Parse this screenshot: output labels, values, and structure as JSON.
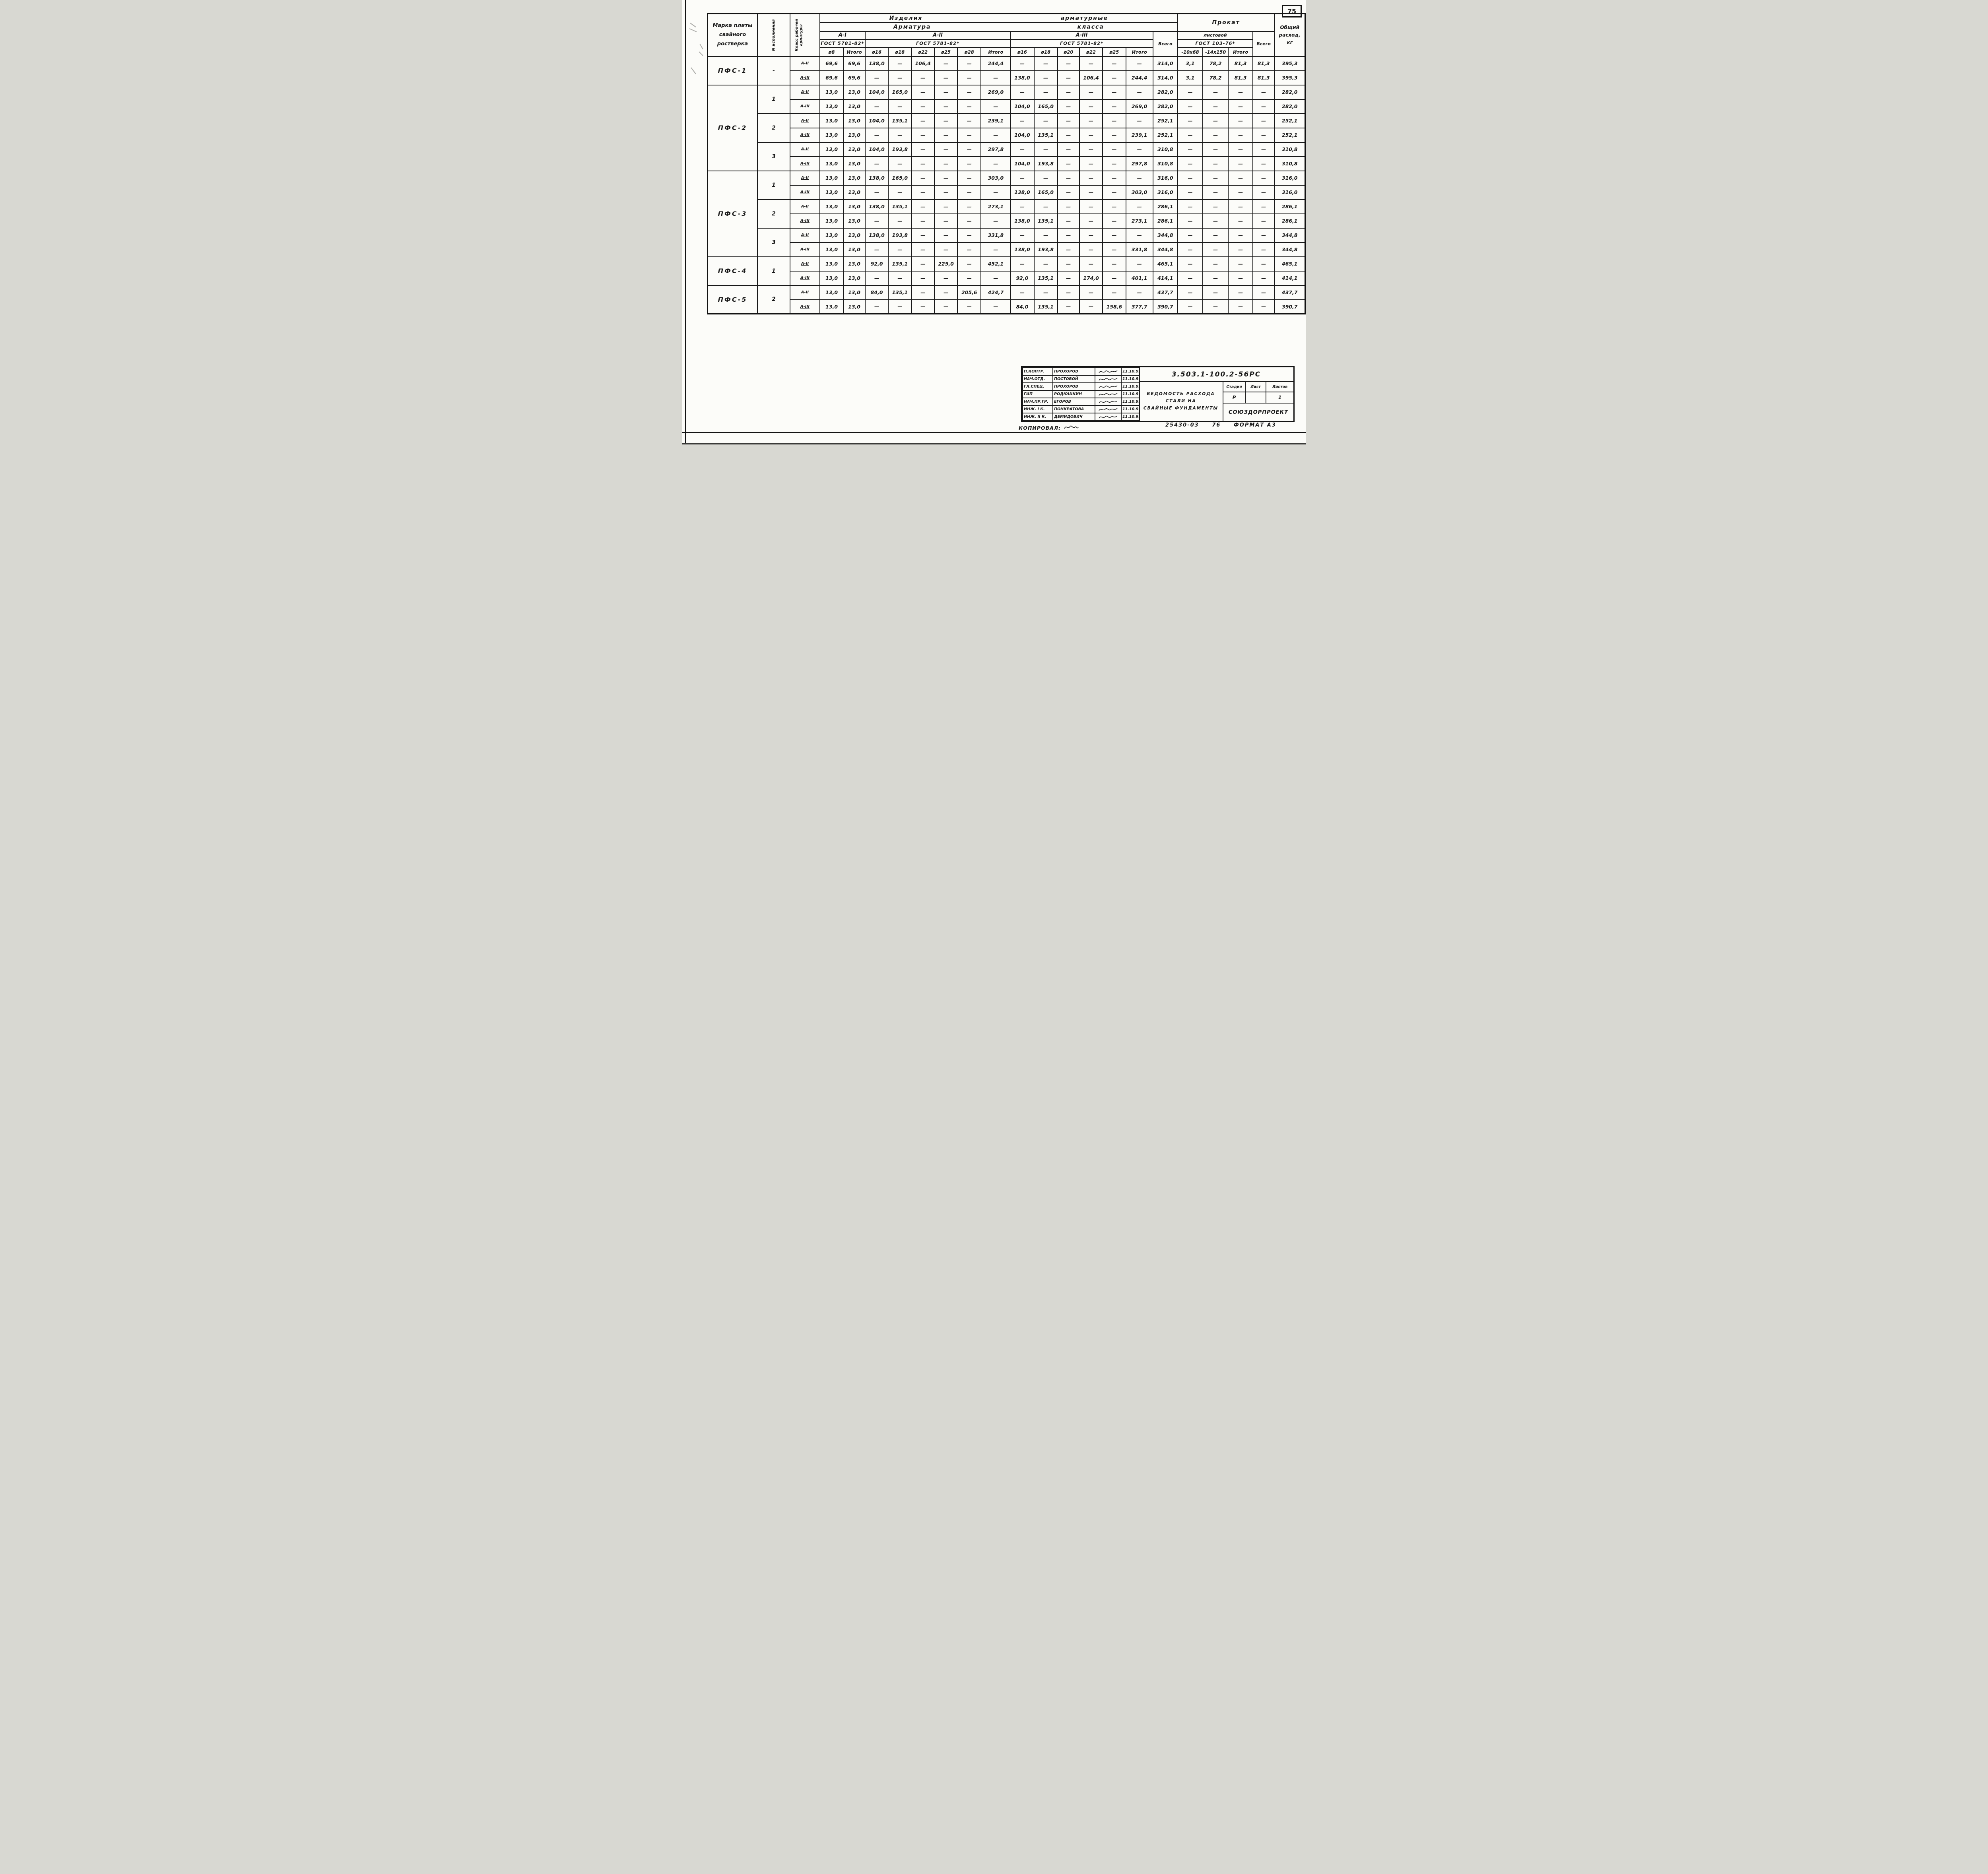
{
  "page": {
    "sheet_number": "75",
    "copied_label": "КОПИРОВАЛ:",
    "footer_order": "25430-03",
    "footer_code": "76",
    "footer_format": "ФОРМАТ А3"
  },
  "table": {
    "header": {
      "title_left": "Изделия",
      "title_right": "арматурные",
      "subtitle_left": "Арматура",
      "subtitle_right": "класса",
      "mark_lines": [
        "Марка плиты",
        "свайного",
        "ростверка"
      ],
      "variant_label": "N исполнения",
      "class_label": "Класс рабочей арматуры",
      "a1": "А-I",
      "a2": "А-II",
      "a3": "А-III",
      "gost_a1": "ГОСТ 5781-82*",
      "gost_a2": "ГОСТ 5781-82*",
      "gost_a3": "ГОСТ 5781-82*",
      "d_a1": [
        "ø8",
        "Итого"
      ],
      "d_a2": [
        "ø16",
        "ø18",
        "ø22",
        "ø25",
        "ø28",
        "Итого"
      ],
      "d_a3": [
        "ø16",
        "ø18",
        "ø20",
        "ø22",
        "ø25",
        "Итого"
      ],
      "vsego_arm": "Всего",
      "prokat": "Прокат",
      "listovoy": "листовой",
      "gost_prokat": "ГОСТ 103-76*",
      "d_prokat": [
        "-10х68",
        "-14х150",
        "Итого"
      ],
      "vsego_prokat": "Всего",
      "total_lines": [
        "Общий",
        "расход,",
        "кг"
      ]
    },
    "rows": [
      {
        "mark": "ПФС-1",
        "mark_span": 2,
        "variant": "-",
        "variant_span": 2,
        "cls": "А-II",
        "values": [
          "69,6",
          "69,6",
          "138,0",
          "—",
          "106,4",
          "—",
          "—",
          "244,4",
          "—",
          "—",
          "—",
          "—",
          "—",
          "—",
          "314,0",
          "3,1",
          "78,2",
          "81,3",
          "81,3",
          "395,3"
        ]
      },
      {
        "cls": "А-III",
        "values": [
          "69,6",
          "69,6",
          "—",
          "—",
          "—",
          "—",
          "—",
          "—",
          "138,0",
          "—",
          "—",
          "106,4",
          "—",
          "244,4",
          "314,0",
          "3,1",
          "78,2",
          "81,3",
          "81,3",
          "395,3"
        ]
      },
      {
        "mark": "ПФС-2",
        "mark_span": 6,
        "variant": "1",
        "variant_span": 2,
        "cls": "А-II",
        "values": [
          "13,0",
          "13,0",
          "104,0",
          "165,0",
          "—",
          "—",
          "—",
          "269,0",
          "—",
          "—",
          "—",
          "—",
          "—",
          "—",
          "282,0",
          "—",
          "—",
          "—",
          "—",
          "282,0"
        ]
      },
      {
        "cls": "А-III",
        "values": [
          "13,0",
          "13,0",
          "—",
          "—",
          "—",
          "—",
          "—",
          "—",
          "104,0",
          "165,0",
          "—",
          "—",
          "—",
          "269,0",
          "282,0",
          "—",
          "—",
          "—",
          "—",
          "282,0"
        ]
      },
      {
        "variant": "2",
        "variant_span": 2,
        "cls": "А-II",
        "values": [
          "13,0",
          "13,0",
          "104,0",
          "135,1",
          "—",
          "—",
          "—",
          "239,1",
          "—",
          "—",
          "—",
          "—",
          "—",
          "—",
          "252,1",
          "—",
          "—",
          "—",
          "—",
          "252,1"
        ]
      },
      {
        "cls": "А-III",
        "values": [
          "13,0",
          "13,0",
          "—",
          "—",
          "—",
          "—",
          "—",
          "—",
          "104,0",
          "135,1",
          "—",
          "—",
          "—",
          "239,1",
          "252,1",
          "—",
          "—",
          "—",
          "—",
          "252,1"
        ]
      },
      {
        "variant": "3",
        "variant_span": 2,
        "cls": "А-II",
        "values": [
          "13,0",
          "13,0",
          "104,0",
          "193,8",
          "—",
          "—",
          "—",
          "297,8",
          "—",
          "—",
          "—",
          "—",
          "—",
          "—",
          "310,8",
          "—",
          "—",
          "—",
          "—",
          "310,8"
        ]
      },
      {
        "cls": "А-III",
        "values": [
          "13,0",
          "13,0",
          "—",
          "—",
          "—",
          "—",
          "—",
          "—",
          "104,0",
          "193,8",
          "—",
          "—",
          "—",
          "297,8",
          "310,8",
          "—",
          "—",
          "—",
          "—",
          "310,8"
        ]
      },
      {
        "mark": "ПФС-3",
        "mark_span": 6,
        "variant": "1",
        "variant_span": 2,
        "cls": "А-II",
        "values": [
          "13,0",
          "13,0",
          "138,0",
          "165,0",
          "—",
          "—",
          "—",
          "303,0",
          "—",
          "—",
          "—",
          "—",
          "—",
          "—",
          "316,0",
          "—",
          "—",
          "—",
          "—",
          "316,0"
        ]
      },
      {
        "cls": "А-III",
        "values": [
          "13,0",
          "13,0",
          "—",
          "—",
          "—",
          "—",
          "—",
          "—",
          "138,0",
          "165,0",
          "—",
          "—",
          "—",
          "303,0",
          "316,0",
          "—",
          "—",
          "—",
          "—",
          "316,0"
        ]
      },
      {
        "variant": "2",
        "variant_span": 2,
        "cls": "А-II",
        "values": [
          "13,0",
          "13,0",
          "138,0",
          "135,1",
          "—",
          "—",
          "—",
          "273,1",
          "—",
          "—",
          "—",
          "—",
          "—",
          "—",
          "286,1",
          "—",
          "—",
          "—",
          "—",
          "286,1"
        ]
      },
      {
        "cls": "А-III",
        "values": [
          "13,0",
          "13,0",
          "—",
          "—",
          "—",
          "—",
          "—",
          "—",
          "138,0",
          "135,1",
          "—",
          "—",
          "—",
          "273,1",
          "286,1",
          "—",
          "—",
          "—",
          "—",
          "286,1"
        ]
      },
      {
        "variant": "3",
        "variant_span": 2,
        "cls": "А-II",
        "values": [
          "13,0",
          "13,0",
          "138,0",
          "193,8",
          "—",
          "—",
          "—",
          "331,8",
          "—",
          "—",
          "—",
          "—",
          "—",
          "—",
          "344,8",
          "—",
          "—",
          "—",
          "—",
          "344,8"
        ]
      },
      {
        "cls": "А-III",
        "values": [
          "13,0",
          "13,0",
          "—",
          "—",
          "—",
          "—",
          "—",
          "—",
          "138,0",
          "193,8",
          "—",
          "—",
          "—",
          "331,8",
          "344,8",
          "—",
          "—",
          "—",
          "—",
          "344,8"
        ]
      },
      {
        "mark": "ПФС-4",
        "mark_span": 2,
        "variant": "1",
        "variant_span": 2,
        "cls": "А-II",
        "values": [
          "13,0",
          "13,0",
          "92,0",
          "135,1",
          "—",
          "225,0",
          "—",
          "452,1",
          "—",
          "—",
          "—",
          "—",
          "—",
          "—",
          "465,1",
          "—",
          "—",
          "—",
          "—",
          "465,1"
        ]
      },
      {
        "cls": "А-III",
        "values": [
          "13,0",
          "13,0",
          "—",
          "—",
          "—",
          "—",
          "—",
          "—",
          "92,0",
          "135,1",
          "—",
          "174,0",
          "—",
          "401,1",
          "414,1",
          "—",
          "—",
          "—",
          "—",
          "414,1"
        ]
      },
      {
        "mark": "ПФС-5",
        "mark_span": 2,
        "variant": "2",
        "variant_span": 2,
        "cls": "А-II",
        "values": [
          "13,0",
          "13,0",
          "84,0",
          "135,1",
          "—",
          "—",
          "205,6",
          "424,7",
          "—",
          "—",
          "—",
          "—",
          "—",
          "—",
          "437,7",
          "—",
          "—",
          "—",
          "—",
          "437,7"
        ]
      },
      {
        "cls": "А-III",
        "values": [
          "13,0",
          "13,0",
          "—",
          "—",
          "—",
          "—",
          "—",
          "—",
          "84,0",
          "135,1",
          "—",
          "—",
          "158,6",
          "377,7",
          "390,7",
          "—",
          "—",
          "—",
          "—",
          "390,7"
        ]
      }
    ]
  },
  "stamp": {
    "doc_number": "3.503.1-100.2-56РС",
    "title_lines": [
      "ВЕДОМОСТЬ  РАСХОДА",
      "СТАЛИ  НА",
      "СВАЙНЫЕ  ФУНДАМЕНТЫ"
    ],
    "stage_label": "Стадия",
    "sheet_label": "Лист",
    "sheets_label": "Листов",
    "stage_value": "Р",
    "sheet_value": "",
    "sheets_value": "1",
    "org": "СОЮЗДОРПРОЕКТ",
    "people": [
      {
        "role": "Н.КОНТР.",
        "name": "ПРОХОРОВ",
        "date": "11.10.91"
      },
      {
        "role": "НАЧ.ОТД.",
        "name": "ПОСТОВОЙ",
        "date": "11.10.91"
      },
      {
        "role": "ГЛ.СПЕЦ.",
        "name": "ПРОХОРОВ",
        "date": "11.10.91"
      },
      {
        "role": "ГИП",
        "name": "РОДЮШКИН",
        "date": "11.10.91"
      },
      {
        "role": "НАЧ.ПР.ГР.",
        "name": "ЕГОРОВ",
        "date": "11.10.91"
      },
      {
        "role": "ИНЖ. I К.",
        "name": "ПОНКРАТОВА",
        "date": "11.10.91"
      },
      {
        "role": "ИНЖ. II К.",
        "name": "ДЕМИДОВИЧ",
        "date": "11.10.91"
      }
    ]
  }
}
